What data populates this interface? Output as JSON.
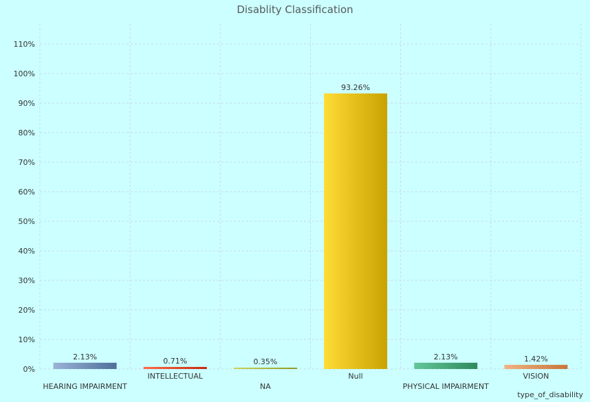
{
  "chart_data": {
    "type": "bar",
    "title": "Disablity Classification",
    "xlabel": "type_of_disability",
    "ylabel": "",
    "ylim": [
      0,
      110
    ],
    "yticks": [
      "0%",
      "10%",
      "20%",
      "30%",
      "40%",
      "50%",
      "60%",
      "70%",
      "80%",
      "90%",
      "100%",
      "110%"
    ],
    "grid": true,
    "categories": [
      "HEARING IMPAIRMENT",
      "INTELLECTUAL",
      "NA",
      "Null",
      "PHYSICAL IMPAIRMENT",
      "VISION"
    ],
    "values": [
      2.13,
      0.71,
      0.35,
      93.26,
      2.13,
      1.42
    ],
    "data_labels": [
      "2.13%",
      "0.71%",
      "0.35%",
      "93.26%",
      "2.13%",
      "1.42%"
    ],
    "colors": [
      [
        "#9ab3d6",
        "#4f6f9a"
      ],
      [
        "#ff6b4a",
        "#c42a0e"
      ],
      [
        "#c9d35a",
        "#8d9a22"
      ],
      [
        "#ffdc36",
        "#c9a200"
      ],
      [
        "#63c79a",
        "#2e8a5c"
      ],
      [
        "#f2b284",
        "#c77638"
      ]
    ]
  }
}
